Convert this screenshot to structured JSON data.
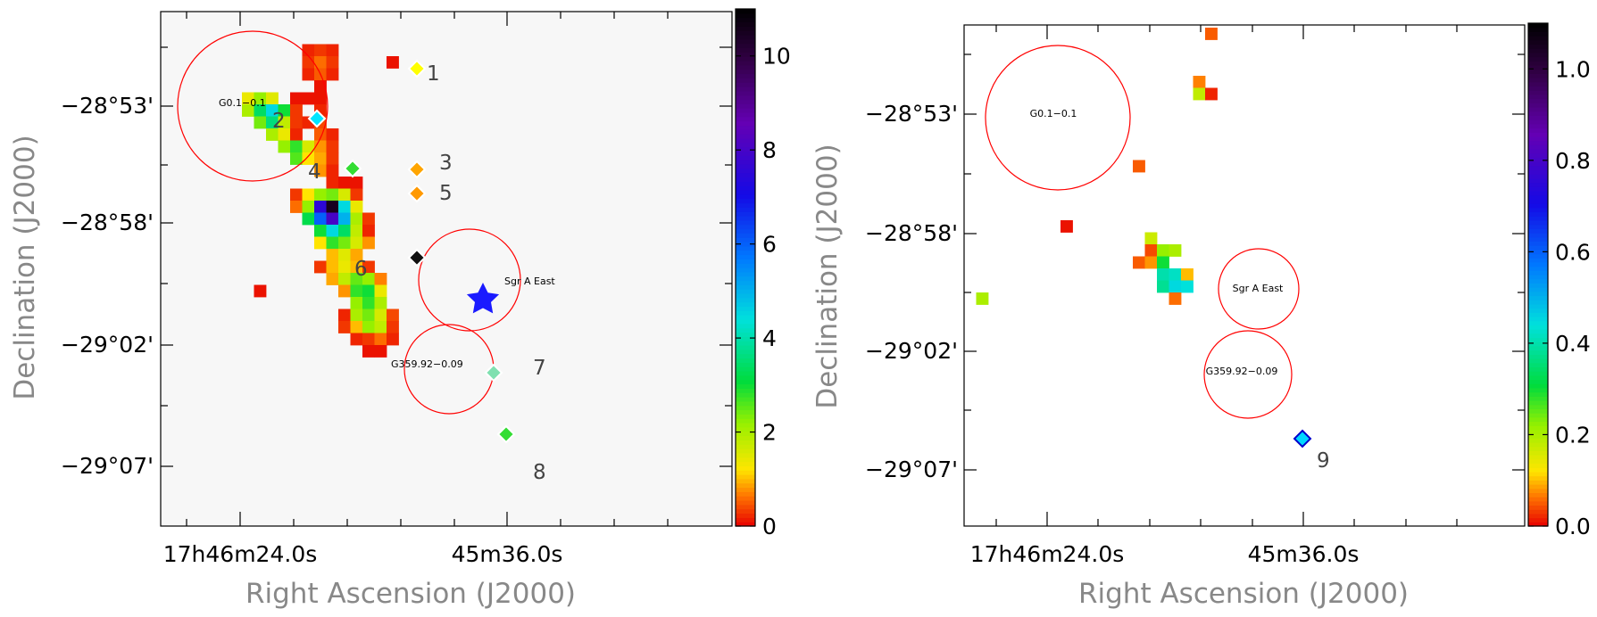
{
  "chart_data": [
    {
      "type": "heatmap",
      "panel": "left",
      "xlabel": "Right Ascension (J2000)",
      "ylabel": "Declination (J2000)",
      "x_ticks": [
        "17h46m24.0s",
        "45m36.0s"
      ],
      "y_ticks": [
        "−28°53'",
        "−28°58'",
        "−29°02'",
        "−29°07'"
      ],
      "colorbar": {
        "range": [
          0,
          11
        ],
        "ticks": [
          "0",
          "2",
          "4",
          "6",
          "8",
          "10"
        ]
      },
      "regions": [
        {
          "label": "G0.1−0.1"
        },
        {
          "label": "Sgr A East"
        },
        {
          "label": "G359.92−0.09"
        }
      ],
      "sources": [
        {
          "id": "1",
          "value": 0.5
        },
        {
          "id": "2",
          "value": 4.5
        },
        {
          "id": "3",
          "value": 1.0
        },
        {
          "id": "4",
          "value": 2.5
        },
        {
          "id": "5",
          "value": 1.0
        },
        {
          "id": "6",
          "value": 10.0
        },
        {
          "id": "7",
          "value": 3.0
        },
        {
          "id": "8",
          "value": 2.5
        }
      ],
      "marker": {
        "label": "blue-star",
        "description": "Sgr A*"
      },
      "cells": [
        {
          "c": 9,
          "r": 1,
          "v": 0.2
        },
        {
          "c": 10,
          "r": 1,
          "v": 0.3
        },
        {
          "c": 11,
          "r": 1,
          "v": 0.2
        },
        {
          "c": 9,
          "r": 2,
          "v": 0.3
        },
        {
          "c": 10,
          "r": 2,
          "v": 0.6
        },
        {
          "c": 11,
          "r": 2,
          "v": 0.3
        },
        {
          "c": 16,
          "r": 2,
          "v": 0.1
        },
        {
          "c": 9,
          "r": 3,
          "v": 0.2
        },
        {
          "c": 10,
          "r": 3,
          "v": 0.5
        },
        {
          "c": 11,
          "r": 3,
          "v": 0.2
        },
        {
          "c": 10,
          "r": 4,
          "v": 0.1
        },
        {
          "c": 4,
          "r": 5,
          "v": 1.4
        },
        {
          "c": 5,
          "r": 5,
          "v": 2.2
        },
        {
          "c": 6,
          "r": 5,
          "v": 1.5
        },
        {
          "c": 8,
          "r": 5,
          "v": 0.1
        },
        {
          "c": 9,
          "r": 5,
          "v": 0.1
        },
        {
          "c": 10,
          "r": 5,
          "v": 0.1
        },
        {
          "c": 4,
          "r": 6,
          "v": 2.0
        },
        {
          "c": 5,
          "r": 6,
          "v": 3.4
        },
        {
          "c": 6,
          "r": 6,
          "v": 4.5
        },
        {
          "c": 7,
          "r": 6,
          "v": 3.0
        },
        {
          "c": 8,
          "r": 6,
          "v": 0.3
        },
        {
          "c": 10,
          "r": 6,
          "v": 0.2
        },
        {
          "c": 5,
          "r": 7,
          "v": 2.4
        },
        {
          "c": 6,
          "r": 7,
          "v": 3.6
        },
        {
          "c": 7,
          "r": 7,
          "v": 1.8
        },
        {
          "c": 8,
          "r": 7,
          "v": 0.3
        },
        {
          "c": 9,
          "r": 7,
          "v": 0.2
        },
        {
          "c": 10,
          "r": 7,
          "v": 0.4
        },
        {
          "c": 6,
          "r": 8,
          "v": 2.0
        },
        {
          "c": 7,
          "r": 8,
          "v": 1.4
        },
        {
          "c": 8,
          "r": 8,
          "v": 0.2
        },
        {
          "c": 10,
          "r": 8,
          "v": 0.5
        },
        {
          "c": 11,
          "r": 8,
          "v": 0.2
        },
        {
          "c": 7,
          "r": 9,
          "v": 2.2
        },
        {
          "c": 8,
          "r": 9,
          "v": 2.8
        },
        {
          "c": 9,
          "r": 9,
          "v": 1.6
        },
        {
          "c": 10,
          "r": 9,
          "v": 0.8
        },
        {
          "c": 11,
          "r": 9,
          "v": 0.3
        },
        {
          "c": 8,
          "r": 10,
          "v": 2.6
        },
        {
          "c": 9,
          "r": 10,
          "v": 1.2
        },
        {
          "c": 10,
          "r": 10,
          "v": 0.9
        },
        {
          "c": 11,
          "r": 10,
          "v": 0.3
        },
        {
          "c": 10,
          "r": 11,
          "v": 0.8
        },
        {
          "c": 11,
          "r": 11,
          "v": 0.2
        },
        {
          "c": 11,
          "r": 12,
          "v": 0.2
        },
        {
          "c": 12,
          "r": 12,
          "v": 0.1
        },
        {
          "c": 13,
          "r": 12,
          "v": 0.1
        },
        {
          "c": 8,
          "r": 13,
          "v": 0.3
        },
        {
          "c": 9,
          "r": 13,
          "v": 1.2
        },
        {
          "c": 10,
          "r": 13,
          "v": 2.2
        },
        {
          "c": 11,
          "r": 13,
          "v": 2.4
        },
        {
          "c": 12,
          "r": 13,
          "v": 1.6
        },
        {
          "c": 13,
          "r": 13,
          "v": 0.3
        },
        {
          "c": 8,
          "r": 14,
          "v": 0.6
        },
        {
          "c": 9,
          "r": 14,
          "v": 2.2
        },
        {
          "c": 10,
          "r": 14,
          "v": 7.5
        },
        {
          "c": 11,
          "r": 14,
          "v": 10.5
        },
        {
          "c": 12,
          "r": 14,
          "v": 4.5
        },
        {
          "c": 13,
          "r": 14,
          "v": 1.4
        },
        {
          "c": 9,
          "r": 15,
          "v": 3.2
        },
        {
          "c": 10,
          "r": 15,
          "v": 6.0
        },
        {
          "c": 11,
          "r": 15,
          "v": 8.0
        },
        {
          "c": 12,
          "r": 15,
          "v": 5.0
        },
        {
          "c": 13,
          "r": 15,
          "v": 2.0
        },
        {
          "c": 14,
          "r": 15,
          "v": 0.3
        },
        {
          "c": 10,
          "r": 16,
          "v": 3.0
        },
        {
          "c": 11,
          "r": 16,
          "v": 4.5
        },
        {
          "c": 12,
          "r": 16,
          "v": 3.4
        },
        {
          "c": 13,
          "r": 16,
          "v": 1.8
        },
        {
          "c": 14,
          "r": 16,
          "v": 0.2
        },
        {
          "c": 10,
          "r": 17,
          "v": 1.2
        },
        {
          "c": 11,
          "r": 17,
          "v": 2.8
        },
        {
          "c": 12,
          "r": 17,
          "v": 2.4
        },
        {
          "c": 13,
          "r": 17,
          "v": 1.6
        },
        {
          "c": 14,
          "r": 17,
          "v": 0.8
        },
        {
          "c": 11,
          "r": 18,
          "v": 1.0
        },
        {
          "c": 12,
          "r": 18,
          "v": 1.5
        },
        {
          "c": 13,
          "r": 18,
          "v": 0.9
        },
        {
          "c": 10,
          "r": 19,
          "v": 0.3
        },
        {
          "c": 11,
          "r": 19,
          "v": 1.0
        },
        {
          "c": 12,
          "r": 19,
          "v": 1.4
        },
        {
          "c": 13,
          "r": 19,
          "v": 1.0
        },
        {
          "c": 14,
          "r": 19,
          "v": 0.3
        },
        {
          "c": 11,
          "r": 20,
          "v": 0.9
        },
        {
          "c": 12,
          "r": 20,
          "v": 1.8
        },
        {
          "c": 13,
          "r": 20,
          "v": 2.5
        },
        {
          "c": 14,
          "r": 20,
          "v": 2.2
        },
        {
          "c": 15,
          "r": 20,
          "v": 0.7
        },
        {
          "c": 5,
          "r": 21,
          "v": 0.1
        },
        {
          "c": 12,
          "r": 21,
          "v": 0.8
        },
        {
          "c": 13,
          "r": 21,
          "v": 2.8
        },
        {
          "c": 14,
          "r": 21,
          "v": 3.0
        },
        {
          "c": 15,
          "r": 21,
          "v": 1.4
        },
        {
          "c": 13,
          "r": 22,
          "v": 2.2
        },
        {
          "c": 14,
          "r": 22,
          "v": 2.8
        },
        {
          "c": 15,
          "r": 22,
          "v": 2.0
        },
        {
          "c": 12,
          "r": 23,
          "v": 0.2
        },
        {
          "c": 13,
          "r": 23,
          "v": 2.0
        },
        {
          "c": 14,
          "r": 23,
          "v": 2.4
        },
        {
          "c": 15,
          "r": 23,
          "v": 1.6
        },
        {
          "c": 16,
          "r": 23,
          "v": 0.4
        },
        {
          "c": 12,
          "r": 24,
          "v": 0.3
        },
        {
          "c": 13,
          "r": 24,
          "v": 1.0
        },
        {
          "c": 14,
          "r": 24,
          "v": 2.2
        },
        {
          "c": 15,
          "r": 24,
          "v": 1.8
        },
        {
          "c": 16,
          "r": 24,
          "v": 0.3
        },
        {
          "c": 13,
          "r": 25,
          "v": 0.2
        },
        {
          "c": 14,
          "r": 25,
          "v": 0.3
        },
        {
          "c": 15,
          "r": 25,
          "v": 0.6
        },
        {
          "c": 16,
          "r": 25,
          "v": 0.2
        },
        {
          "c": 14,
          "r": 26,
          "v": 0.1
        },
        {
          "c": 15,
          "r": 26,
          "v": 0.1
        }
      ]
    },
    {
      "type": "heatmap",
      "panel": "right",
      "xlabel": "Right Ascension (J2000)",
      "ylabel": "Declination (J2000)",
      "x_ticks": [
        "17h46m24.0s",
        "45m36.0s"
      ],
      "y_ticks": [
        "−28°53'",
        "−28°58'",
        "−29°02'",
        "−29°07'"
      ],
      "colorbar": {
        "range": [
          0,
          1.1
        ],
        "ticks": [
          "0.0",
          "0.2",
          "0.4",
          "0.6",
          "0.8",
          "1.0"
        ]
      },
      "regions": [
        {
          "label": "G0.1−0.1"
        },
        {
          "label": "Sgr A East"
        },
        {
          "label": "G359.92−0.09"
        }
      ],
      "sources": [
        {
          "id": "9",
          "value": 0.45
        }
      ],
      "cells": [
        {
          "c": 20,
          "r": 0,
          "v": 0.05
        },
        {
          "c": 19,
          "r": 4,
          "v": 0.07
        },
        {
          "c": 19,
          "r": 5,
          "v": 0.18
        },
        {
          "c": 20,
          "r": 5,
          "v": 0.02
        },
        {
          "c": 14,
          "r": 11,
          "v": 0.05
        },
        {
          "c": 8,
          "r": 16,
          "v": 0.01
        },
        {
          "c": 15,
          "r": 17,
          "v": 0.17
        },
        {
          "c": 15,
          "r": 18,
          "v": 0.04
        },
        {
          "c": 16,
          "r": 18,
          "v": 0.22
        },
        {
          "c": 17,
          "r": 18,
          "v": 0.2
        },
        {
          "c": 14,
          "r": 19,
          "v": 0.05
        },
        {
          "c": 15,
          "r": 19,
          "v": 0.08
        },
        {
          "c": 16,
          "r": 19,
          "v": 0.3
        },
        {
          "c": 16,
          "r": 20,
          "v": 0.4
        },
        {
          "c": 17,
          "r": 20,
          "v": 0.42
        },
        {
          "c": 18,
          "r": 20,
          "v": 0.1
        },
        {
          "c": 16,
          "r": 21,
          "v": 0.38
        },
        {
          "c": 17,
          "r": 21,
          "v": 0.45
        },
        {
          "c": 18,
          "r": 21,
          "v": 0.44
        },
        {
          "c": 1,
          "r": 22,
          "v": 0.2
        },
        {
          "c": 17,
          "r": 22,
          "v": 0.06
        }
      ]
    }
  ]
}
